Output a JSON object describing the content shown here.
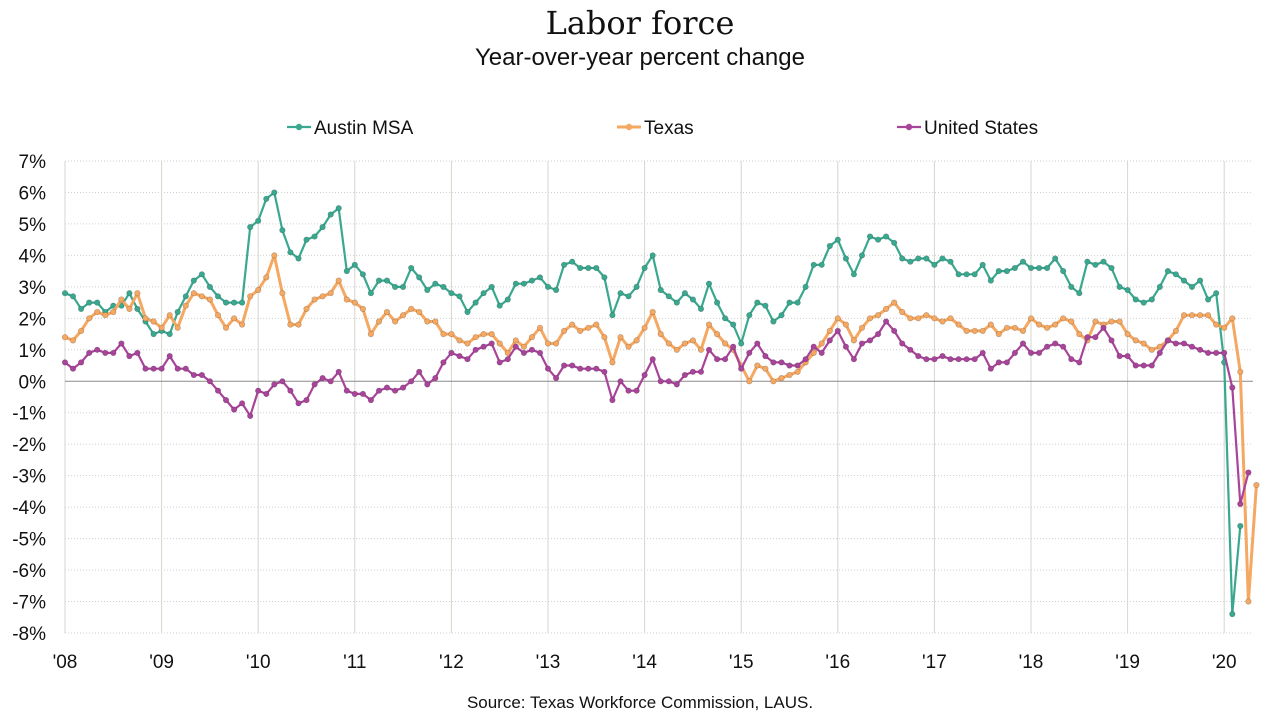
{
  "chart_data": {
    "type": "line",
    "title": "Labor force",
    "subtitle": "Year-over-year percent change",
    "source": "Source:  Texas Workforce Commission, LAUS.",
    "legend_position": "top",
    "grid": true,
    "ylim": [
      -8,
      7
    ],
    "yticks": [
      7,
      6,
      5,
      4,
      3,
      2,
      1,
      0,
      -1,
      -2,
      -3,
      -4,
      -5,
      -6,
      -7,
      -8
    ],
    "ytick_labels": [
      "7%",
      "6%",
      "5%",
      "4%",
      "3%",
      "2%",
      "1%",
      "0%",
      "-1%",
      "-2%",
      "-3%",
      "-4%",
      "-5%",
      "-6%",
      "-7%",
      "-8%"
    ],
    "xtick_labels": [
      "'08",
      "'09",
      "'10",
      "'11",
      "'12",
      "'13",
      "'14",
      "'15",
      "'16",
      "'17",
      "'18",
      "'19",
      "'20"
    ],
    "start": "2008-01",
    "frequency": "monthly",
    "series": [
      {
        "name": "Austin MSA",
        "color": "#3aa88f",
        "values": [
          2.8,
          2.7,
          2.3,
          2.5,
          2.5,
          2.2,
          2.4,
          2.4,
          2.8,
          2.3,
          1.9,
          1.5,
          1.6,
          1.5,
          2.2,
          2.7,
          3.2,
          3.4,
          3.0,
          2.7,
          2.5,
          2.5,
          2.5,
          4.9,
          5.1,
          5.8,
          6.0,
          4.8,
          4.1,
          3.9,
          4.5,
          4.6,
          4.9,
          5.3,
          5.5,
          3.5,
          3.7,
          3.4,
          2.8,
          3.2,
          3.2,
          3.0,
          3.0,
          3.6,
          3.3,
          2.9,
          3.1,
          3.0,
          2.8,
          2.7,
          2.2,
          2.5,
          2.8,
          3.0,
          2.4,
          2.6,
          3.1,
          3.1,
          3.2,
          3.3,
          3.0,
          2.9,
          3.7,
          3.8,
          3.6,
          3.6,
          3.6,
          3.3,
          2.1,
          2.8,
          2.7,
          3.0,
          3.6,
          4.0,
          2.9,
          2.7,
          2.5,
          2.8,
          2.6,
          2.3,
          3.1,
          2.5,
          2.0,
          1.8,
          1.2,
          2.1,
          2.5,
          2.4,
          1.9,
          2.1,
          2.5,
          2.5,
          3.0,
          3.7,
          3.7,
          4.3,
          4.5,
          3.9,
          3.4,
          4.0,
          4.6,
          4.5,
          4.6,
          4.4,
          3.9,
          3.8,
          3.9,
          3.9,
          3.7,
          3.9,
          3.8,
          3.4,
          3.4,
          3.4,
          3.7,
          3.2,
          3.5,
          3.5,
          3.6,
          3.8,
          3.6,
          3.6,
          3.6,
          3.9,
          3.5,
          3.0,
          2.8,
          3.8,
          3.7,
          3.8,
          3.6,
          3.0,
          2.9,
          2.6,
          2.5,
          2.6,
          3.0,
          3.5,
          3.4,
          3.2,
          3.0,
          3.2,
          2.6,
          2.8,
          0.6,
          -7.4,
          -4.6
        ]
      },
      {
        "name": "Texas",
        "color": "#f5a862",
        "values": [
          1.4,
          1.3,
          1.6,
          2.0,
          2.2,
          2.1,
          2.2,
          2.6,
          2.3,
          2.8,
          2.0,
          1.9,
          1.7,
          2.1,
          1.7,
          2.4,
          2.8,
          2.7,
          2.6,
          2.1,
          1.7,
          2.0,
          1.8,
          2.7,
          2.9,
          3.3,
          4.0,
          2.8,
          1.8,
          1.8,
          2.3,
          2.6,
          2.7,
          2.8,
          3.2,
          2.6,
          2.5,
          2.3,
          1.5,
          1.9,
          2.2,
          1.9,
          2.1,
          2.3,
          2.2,
          1.9,
          1.9,
          1.5,
          1.5,
          1.3,
          1.2,
          1.4,
          1.5,
          1.5,
          1.2,
          0.9,
          1.3,
          1.1,
          1.4,
          1.7,
          1.2,
          1.2,
          1.6,
          1.8,
          1.6,
          1.7,
          1.8,
          1.4,
          0.6,
          1.4,
          1.1,
          1.3,
          1.7,
          2.2,
          1.5,
          1.2,
          1.0,
          1.2,
          1.3,
          1.0,
          1.8,
          1.5,
          1.2,
          1.0,
          0.5,
          0.0,
          0.5,
          0.4,
          0.0,
          0.1,
          0.2,
          0.3,
          0.6,
          0.9,
          1.2,
          1.6,
          2.0,
          1.8,
          1.3,
          1.7,
          2.0,
          2.1,
          2.3,
          2.5,
          2.2,
          2.0,
          2.0,
          2.1,
          2.0,
          1.9,
          2.0,
          1.8,
          1.6,
          1.6,
          1.6,
          1.8,
          1.5,
          1.7,
          1.7,
          1.6,
          2.0,
          1.8,
          1.7,
          1.8,
          2.0,
          1.9,
          1.5,
          1.3,
          1.9,
          1.8,
          1.9,
          1.9,
          1.5,
          1.3,
          1.2,
          1.0,
          1.1,
          1.3,
          1.6,
          2.1,
          2.1,
          2.1,
          2.1,
          1.8,
          1.7,
          2.0,
          0.3,
          -7.0,
          -3.3
        ]
      },
      {
        "name": "United States",
        "color": "#a8449a",
        "values": [
          0.6,
          0.4,
          0.6,
          0.9,
          1.0,
          0.9,
          0.9,
          1.2,
          0.8,
          0.9,
          0.4,
          0.4,
          0.4,
          0.8,
          0.4,
          0.4,
          0.2,
          0.2,
          0.0,
          -0.3,
          -0.6,
          -0.9,
          -0.7,
          -1.1,
          -0.3,
          -0.4,
          -0.1,
          0.0,
          -0.3,
          -0.7,
          -0.6,
          -0.1,
          0.1,
          0.0,
          0.3,
          -0.3,
          -0.4,
          -0.4,
          -0.6,
          -0.3,
          -0.2,
          -0.3,
          -0.2,
          0.0,
          0.3,
          -0.1,
          0.1,
          0.6,
          0.9,
          0.8,
          0.7,
          1.0,
          1.1,
          1.2,
          0.6,
          0.7,
          1.1,
          0.9,
          1.0,
          0.9,
          0.4,
          0.1,
          0.5,
          0.5,
          0.4,
          0.4,
          0.4,
          0.3,
          -0.6,
          0.0,
          -0.3,
          -0.3,
          0.2,
          0.7,
          0.0,
          0.0,
          -0.1,
          0.2,
          0.3,
          0.3,
          1.0,
          0.7,
          0.7,
          1.1,
          0.4,
          0.9,
          1.2,
          0.8,
          0.6,
          0.6,
          0.5,
          0.5,
          0.7,
          1.1,
          0.9,
          1.3,
          1.6,
          1.1,
          0.7,
          1.2,
          1.3,
          1.5,
          1.9,
          1.6,
          1.2,
          1.0,
          0.8,
          0.7,
          0.7,
          0.8,
          0.7,
          0.7,
          0.7,
          0.7,
          0.9,
          0.4,
          0.6,
          0.6,
          0.9,
          1.2,
          0.9,
          0.9,
          1.1,
          1.2,
          1.1,
          0.7,
          0.6,
          1.4,
          1.4,
          1.7,
          1.3,
          0.8,
          0.8,
          0.5,
          0.5,
          0.5,
          0.9,
          1.3,
          1.2,
          1.2,
          1.1,
          1.0,
          0.9,
          0.9,
          0.9,
          -0.2,
          -3.9,
          -2.9
        ]
      }
    ]
  }
}
